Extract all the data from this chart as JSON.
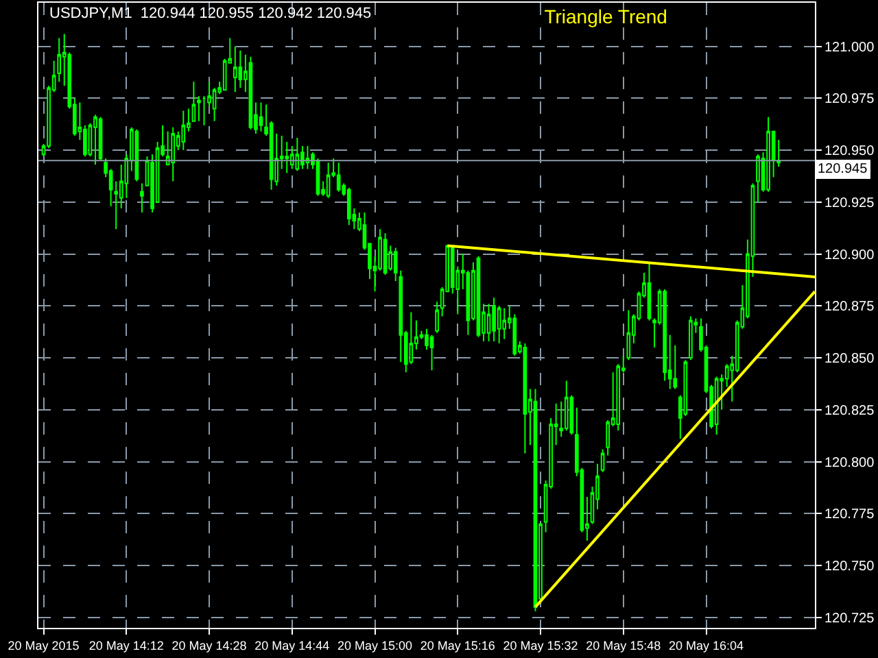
{
  "chart_data": {
    "type": "candlestick",
    "title": "Triangle Trend",
    "annotations": [
      "USDJPY,M1  120.944 120.955 120.942 120.945"
    ],
    "x": [
      "2015-05-20T13:56",
      "2015-05-20T13:57",
      "2015-05-20T13:58",
      "2015-05-20T13:59",
      "2015-05-20T14:00",
      "2015-05-20T14:01",
      "2015-05-20T14:02",
      "2015-05-20T14:03",
      "2015-05-20T14:04",
      "2015-05-20T14:05",
      "2015-05-20T14:06",
      "2015-05-20T14:07",
      "2015-05-20T14:08",
      "2015-05-20T14:09",
      "2015-05-20T14:10",
      "2015-05-20T14:11",
      "2015-05-20T14:12",
      "2015-05-20T14:13",
      "2015-05-20T14:14",
      "2015-05-20T14:15",
      "2015-05-20T14:16",
      "2015-05-20T14:17",
      "2015-05-20T14:18",
      "2015-05-20T14:19",
      "2015-05-20T14:20",
      "2015-05-20T14:21",
      "2015-05-20T14:22",
      "2015-05-20T14:23",
      "2015-05-20T14:24",
      "2015-05-20T14:25",
      "2015-05-20T14:26",
      "2015-05-20T14:27",
      "2015-05-20T14:28",
      "2015-05-20T14:29",
      "2015-05-20T14:30",
      "2015-05-20T14:31",
      "2015-05-20T14:32",
      "2015-05-20T14:33",
      "2015-05-20T14:34",
      "2015-05-20T14:35",
      "2015-05-20T14:36",
      "2015-05-20T14:37",
      "2015-05-20T14:38",
      "2015-05-20T14:39",
      "2015-05-20T14:40",
      "2015-05-20T14:41",
      "2015-05-20T14:42",
      "2015-05-20T14:43",
      "2015-05-20T14:44",
      "2015-05-20T14:45",
      "2015-05-20T14:46",
      "2015-05-20T14:47",
      "2015-05-20T14:48",
      "2015-05-20T14:49",
      "2015-05-20T14:50",
      "2015-05-20T14:51",
      "2015-05-20T14:52",
      "2015-05-20T14:53",
      "2015-05-20T14:54",
      "2015-05-20T14:55",
      "2015-05-20T14:56",
      "2015-05-20T14:57",
      "2015-05-20T14:58",
      "2015-05-20T14:59",
      "2015-05-20T15:00",
      "2015-05-20T15:01",
      "2015-05-20T15:02",
      "2015-05-20T15:03",
      "2015-05-20T15:04",
      "2015-05-20T15:05",
      "2015-05-20T15:06",
      "2015-05-20T15:07",
      "2015-05-20T15:08",
      "2015-05-20T15:09",
      "2015-05-20T15:10",
      "2015-05-20T15:11",
      "2015-05-20T15:12",
      "2015-05-20T15:13",
      "2015-05-20T15:14",
      "2015-05-20T15:15",
      "2015-05-20T15:16",
      "2015-05-20T15:17",
      "2015-05-20T15:18",
      "2015-05-20T15:19",
      "2015-05-20T15:20",
      "2015-05-20T15:21",
      "2015-05-20T15:22",
      "2015-05-20T15:23",
      "2015-05-20T15:24",
      "2015-05-20T15:25",
      "2015-05-20T15:26",
      "2015-05-20T15:27",
      "2015-05-20T15:28",
      "2015-05-20T15:29",
      "2015-05-20T15:30",
      "2015-05-20T15:31",
      "2015-05-20T15:32",
      "2015-05-20T15:33",
      "2015-05-20T15:34",
      "2015-05-20T15:35",
      "2015-05-20T15:36",
      "2015-05-20T15:37",
      "2015-05-20T15:38",
      "2015-05-20T15:39",
      "2015-05-20T15:40",
      "2015-05-20T15:41",
      "2015-05-20T15:42",
      "2015-05-20T15:43",
      "2015-05-20T15:44",
      "2015-05-20T15:45",
      "2015-05-20T15:46",
      "2015-05-20T15:47",
      "2015-05-20T15:48",
      "2015-05-20T15:49",
      "2015-05-20T15:50",
      "2015-05-20T15:51",
      "2015-05-20T15:52",
      "2015-05-20T15:53",
      "2015-05-20T15:54",
      "2015-05-20T15:55",
      "2015-05-20T15:56",
      "2015-05-20T15:57",
      "2015-05-20T15:58",
      "2015-05-20T15:59",
      "2015-05-20T16:00",
      "2015-05-20T16:01",
      "2015-05-20T16:02",
      "2015-05-20T16:03",
      "2015-05-20T16:04",
      "2015-05-20T16:05",
      "2015-05-20T16:06",
      "2015-05-20T16:07",
      "2015-05-20T16:08",
      "2015-05-20T16:09",
      "2015-05-20T16:10",
      "2015-05-20T16:11",
      "2015-05-20T16:12",
      "2015-05-20T16:13",
      "2015-05-20T16:14",
      "2015-05-20T16:15",
      "2015-05-20T16:16",
      "2015-05-20T16:17",
      "2015-05-20T16:18"
    ],
    "series": [
      {
        "color": "#00ff00",
        "ohlc": [
          [
            120.948,
            120.953,
            120.947,
            120.952
          ],
          [
            120.952,
            120.981,
            120.951,
            120.98
          ],
          [
            120.979,
            120.993,
            120.978,
            120.986
          ],
          [
            120.987,
            121.004,
            120.983,
            120.996
          ],
          [
            120.995,
            121.006,
            120.981,
            120.997
          ],
          [
            120.996,
            120.997,
            120.97,
            120.971
          ],
          [
            120.972,
            120.975,
            120.957,
            120.958
          ],
          [
            120.959,
            120.973,
            120.955,
            120.961
          ],
          [
            120.96,
            120.962,
            120.947,
            120.948
          ],
          [
            120.948,
            120.963,
            120.947,
            120.962
          ],
          [
            120.961,
            120.967,
            120.943,
            120.966
          ],
          [
            120.965,
            120.966,
            120.945,
            120.946
          ],
          [
            120.944,
            120.946,
            120.937,
            120.939
          ],
          [
            120.94,
            120.941,
            120.923,
            120.931
          ],
          [
            120.93,
            120.935,
            120.912,
            120.929
          ],
          [
            120.927,
            120.943,
            120.922,
            120.935
          ],
          [
            120.934,
            120.948,
            120.927,
            120.946
          ],
          [
            120.945,
            120.961,
            120.94,
            120.96
          ],
          [
            120.959,
            120.96,
            120.935,
            120.936
          ],
          [
            120.93,
            120.934,
            120.92,
            120.928
          ],
          [
            120.933,
            120.947,
            120.933,
            120.945
          ],
          [
            120.944,
            120.948,
            120.92,
            120.922
          ],
          [
            120.925,
            120.954,
            120.925,
            120.951
          ],
          [
            120.952,
            120.962,
            120.947,
            120.948
          ],
          [
            120.943,
            120.959,
            120.943,
            120.947
          ],
          [
            120.944,
            120.961,
            120.935,
            120.958
          ],
          [
            120.952,
            120.959,
            120.95,
            120.957
          ],
          [
            120.954,
            120.969,
            120.95,
            120.962
          ],
          [
            120.961,
            120.97,
            120.959,
            120.963
          ],
          [
            120.964,
            120.983,
            120.964,
            120.972
          ],
          [
            120.973,
            120.976,
            120.964,
            120.974
          ],
          [
            120.975,
            120.976,
            120.962,
            120.975
          ],
          [
            120.973,
            120.983,
            120.971,
            120.976
          ],
          [
            120.97,
            120.98,
            120.964,
            120.979
          ],
          [
            120.978,
            120.983,
            120.977,
            120.98
          ],
          [
            120.979,
            120.994,
            120.979,
            120.993
          ],
          [
            120.992,
            121.004,
            120.992,
            120.994
          ],
          [
            120.985,
            121.0,
            120.978,
            120.99
          ],
          [
            120.99,
            120.998,
            120.98,
            120.984
          ],
          [
            120.984,
            120.996,
            120.978,
            120.988
          ],
          [
            120.992,
            120.995,
            120.96,
            120.961
          ],
          [
            120.967,
            120.973,
            120.958,
            120.96
          ],
          [
            120.966,
            120.973,
            120.959,
            120.962
          ],
          [
            120.961,
            120.972,
            120.957,
            120.958
          ],
          [
            120.963,
            120.964,
            120.931,
            120.936
          ],
          [
            120.935,
            120.958,
            120.933,
            120.946
          ],
          [
            120.946,
            120.957,
            120.941,
            120.947
          ],
          [
            120.947,
            120.954,
            120.939,
            120.946
          ],
          [
            120.943,
            120.952,
            120.941,
            120.948
          ],
          [
            120.941,
            120.956,
            120.94,
            120.948
          ],
          [
            120.949,
            120.952,
            120.941,
            120.943
          ],
          [
            120.944,
            120.952,
            120.941,
            120.946
          ],
          [
            120.948,
            120.949,
            120.941,
            120.943
          ],
          [
            120.945,
            120.946,
            120.928,
            120.929
          ],
          [
            120.931,
            120.935,
            120.928,
            120.929
          ],
          [
            120.928,
            120.944,
            120.927,
            120.938
          ],
          [
            120.938,
            120.946,
            120.937,
            120.939
          ],
          [
            120.938,
            120.944,
            120.93,
            120.931
          ],
          [
            120.933,
            120.934,
            120.928,
            120.929
          ],
          [
            120.931,
            120.932,
            120.914,
            120.917
          ],
          [
            120.919,
            120.922,
            120.912,
            120.916
          ],
          [
            120.912,
            120.92,
            120.911,
            120.917
          ],
          [
            120.914,
            120.92,
            120.902,
            120.903
          ],
          [
            120.905,
            120.905,
            120.888,
            120.893
          ],
          [
            120.894,
            120.899,
            120.882,
            120.892
          ],
          [
            120.893,
            120.912,
            120.892,
            120.908
          ],
          [
            120.907,
            120.91,
            120.89,
            120.891
          ],
          [
            120.893,
            120.904,
            120.892,
            120.901
          ],
          [
            120.901,
            120.903,
            120.887,
            120.891
          ],
          [
            120.889,
            120.892,
            120.848,
            120.861
          ],
          [
            120.862,
            120.863,
            120.843,
            120.847
          ],
          [
            120.848,
            120.872,
            120.847,
            120.857
          ],
          [
            120.857,
            120.868,
            120.854,
            120.86
          ],
          [
            120.86,
            120.863,
            120.859,
            120.861
          ],
          [
            120.861,
            120.864,
            120.854,
            120.856
          ],
          [
            120.86,
            120.861,
            120.844,
            120.855
          ],
          [
            120.863,
            120.877,
            120.862,
            120.873
          ],
          [
            120.874,
            120.884,
            120.87,
            120.883
          ],
          [
            120.882,
            120.904,
            120.882,
            120.904
          ],
          [
            120.903,
            120.904,
            120.881,
            120.884
          ],
          [
            120.883,
            120.894,
            120.871,
            120.892
          ],
          [
            120.892,
            120.9,
            120.883,
            120.891
          ],
          [
            120.891,
            120.892,
            120.861,
            120.868
          ],
          [
            120.869,
            120.896,
            120.868,
            120.892
          ],
          [
            120.898,
            120.899,
            120.86,
            120.861
          ],
          [
            120.862,
            120.876,
            120.858,
            120.872
          ],
          [
            120.862,
            120.876,
            120.858,
            120.871
          ],
          [
            120.875,
            120.879,
            120.858,
            120.863
          ],
          [
            120.864,
            120.875,
            120.857,
            120.874
          ],
          [
            120.864,
            120.874,
            120.859,
            120.868
          ],
          [
            120.867,
            120.875,
            120.864,
            120.869
          ],
          [
            120.869,
            120.871,
            120.851,
            120.852
          ],
          [
            120.853,
            120.858,
            120.852,
            120.856
          ],
          [
            120.855,
            120.857,
            120.804,
            120.823
          ],
          [
            120.824,
            120.835,
            120.808,
            120.83
          ],
          [
            120.829,
            120.835,
            120.728,
            120.73
          ],
          [
            120.734,
            120.77,
            120.733,
            120.77
          ],
          [
            120.771,
            120.791,
            120.766,
            120.789
          ],
          [
            120.788,
            120.821,
            120.787,
            120.818
          ],
          [
            120.817,
            120.828,
            120.808,
            120.818
          ],
          [
            120.816,
            120.829,
            120.812,
            120.815
          ],
          [
            120.816,
            120.839,
            120.815,
            120.831
          ],
          [
            120.831,
            120.832,
            120.813,
            120.814
          ],
          [
            120.813,
            120.826,
            120.793,
            120.795
          ],
          [
            120.796,
            120.797,
            120.766,
            120.767
          ],
          [
            120.768,
            120.783,
            120.762,
            120.77
          ],
          [
            120.771,
            120.788,
            120.77,
            120.785
          ],
          [
            120.782,
            120.799,
            120.777,
            120.793
          ],
          [
            120.796,
            120.806,
            120.795,
            120.804
          ],
          [
            120.807,
            120.82,
            120.803,
            120.819
          ],
          [
            120.818,
            120.843,
            120.817,
            120.821
          ],
          [
            120.818,
            120.847,
            120.815,
            120.846
          ],
          [
            120.845,
            120.851,
            120.843,
            120.844
          ],
          [
            120.85,
            120.873,
            120.849,
            120.862
          ],
          [
            120.861,
            120.871,
            120.857,
            120.87
          ],
          [
            120.869,
            120.882,
            120.868,
            120.881
          ],
          [
            120.88,
            120.891,
            120.879,
            120.886
          ],
          [
            120.886,
            120.896,
            120.868,
            120.869
          ],
          [
            120.868,
            120.869,
            120.855,
            120.867
          ],
          [
            120.867,
            120.883,
            120.866,
            120.882
          ],
          [
            120.882,
            120.883,
            120.839,
            120.843
          ],
          [
            120.844,
            120.861,
            120.835,
            120.84
          ],
          [
            120.84,
            120.856,
            120.835,
            120.836
          ],
          [
            120.831,
            120.832,
            120.811,
            120.821
          ],
          [
            120.823,
            120.849,
            120.822,
            120.848
          ],
          [
            120.85,
            120.87,
            120.849,
            120.868
          ],
          [
            120.866,
            120.869,
            120.862,
            120.867
          ],
          [
            120.865,
            120.869,
            120.853,
            120.854
          ],
          [
            120.855,
            120.856,
            120.833,
            120.834
          ],
          [
            120.836,
            120.837,
            120.816,
            120.817
          ],
          [
            120.818,
            120.841,
            120.813,
            120.84
          ],
          [
            120.839,
            120.842,
            120.825,
            120.84
          ],
          [
            120.84,
            120.847,
            120.836,
            120.846
          ],
          [
            120.844,
            120.851,
            120.829,
            120.847
          ],
          [
            120.844,
            120.868,
            120.843,
            120.867
          ],
          [
            120.865,
            120.885,
            120.864,
            120.874
          ],
          [
            120.87,
            120.907,
            120.869,
            120.9
          ],
          [
            120.899,
            120.934,
            120.889,
            120.933
          ],
          [
            120.935,
            120.948,
            120.925,
            120.947
          ],
          [
            120.946,
            120.949,
            120.93,
            120.931
          ],
          [
            120.931,
            120.966,
            120.93,
            120.959
          ],
          [
            120.959,
            120.959,
            120.937,
            120.945
          ],
          [
            120.944,
            120.955,
            120.942,
            120.945
          ]
        ]
      },
      {
        "type": "line",
        "x": [
          "2015-05-20T15:14",
          "2015-05-20T16:25"
        ],
        "values": [
          120.904,
          120.889
        ],
        "color": "#ffff00"
      },
      {
        "type": "line",
        "x": [
          "2015-05-20T15:31",
          "2015-05-20T16:25"
        ],
        "values": [
          120.73,
          120.882
        ],
        "color": "#ffff00"
      }
    ],
    "xlim": [
      "2015-05-20T13:55",
      "2015-05-20T16:25"
    ],
    "xticks": [
      {
        "value": "2015-05-20T13:56",
        "label": "20 May 2015"
      },
      {
        "value": "2015-05-20T14:12",
        "label": "20 May 14:12"
      },
      {
        "value": "2015-05-20T14:28",
        "label": "20 May 14:28"
      },
      {
        "value": "2015-05-20T14:44",
        "label": "20 May 14:44"
      },
      {
        "value": "2015-05-20T15:00",
        "label": "20 May 15:00"
      },
      {
        "value": "2015-05-20T15:16",
        "label": "20 May 15:16"
      },
      {
        "value": "2015-05-20T15:32",
        "label": "20 May 15:32"
      },
      {
        "value": "2015-05-20T15:48",
        "label": "20 May 15:48"
      },
      {
        "value": "2015-05-20T16:04",
        "label": "20 May 16:04"
      }
    ],
    "ylim": [
      120.72,
      121.021
    ],
    "yticks": [
      {
        "value": 120.725,
        "label": "120.725"
      },
      {
        "value": 120.75,
        "label": "120.750"
      },
      {
        "value": 120.775,
        "label": "120.775"
      },
      {
        "value": 120.8,
        "label": "120.800"
      },
      {
        "value": 120.825,
        "label": "120.825"
      },
      {
        "value": 120.85,
        "label": "120.850"
      },
      {
        "value": 120.875,
        "label": "120.875"
      },
      {
        "value": 120.9,
        "label": "120.900"
      },
      {
        "value": 120.925,
        "label": "120.925"
      },
      {
        "value": 120.95,
        "label": "120.950"
      },
      {
        "value": 120.975,
        "label": "120.975"
      },
      {
        "value": 121.0,
        "label": "121.000"
      }
    ],
    "ref_lines": [
      {
        "axis": "y",
        "value": 120.945,
        "label": "120.945",
        "color": "#8a9aaa"
      }
    ],
    "grid": true,
    "line_style": "solid"
  }
}
